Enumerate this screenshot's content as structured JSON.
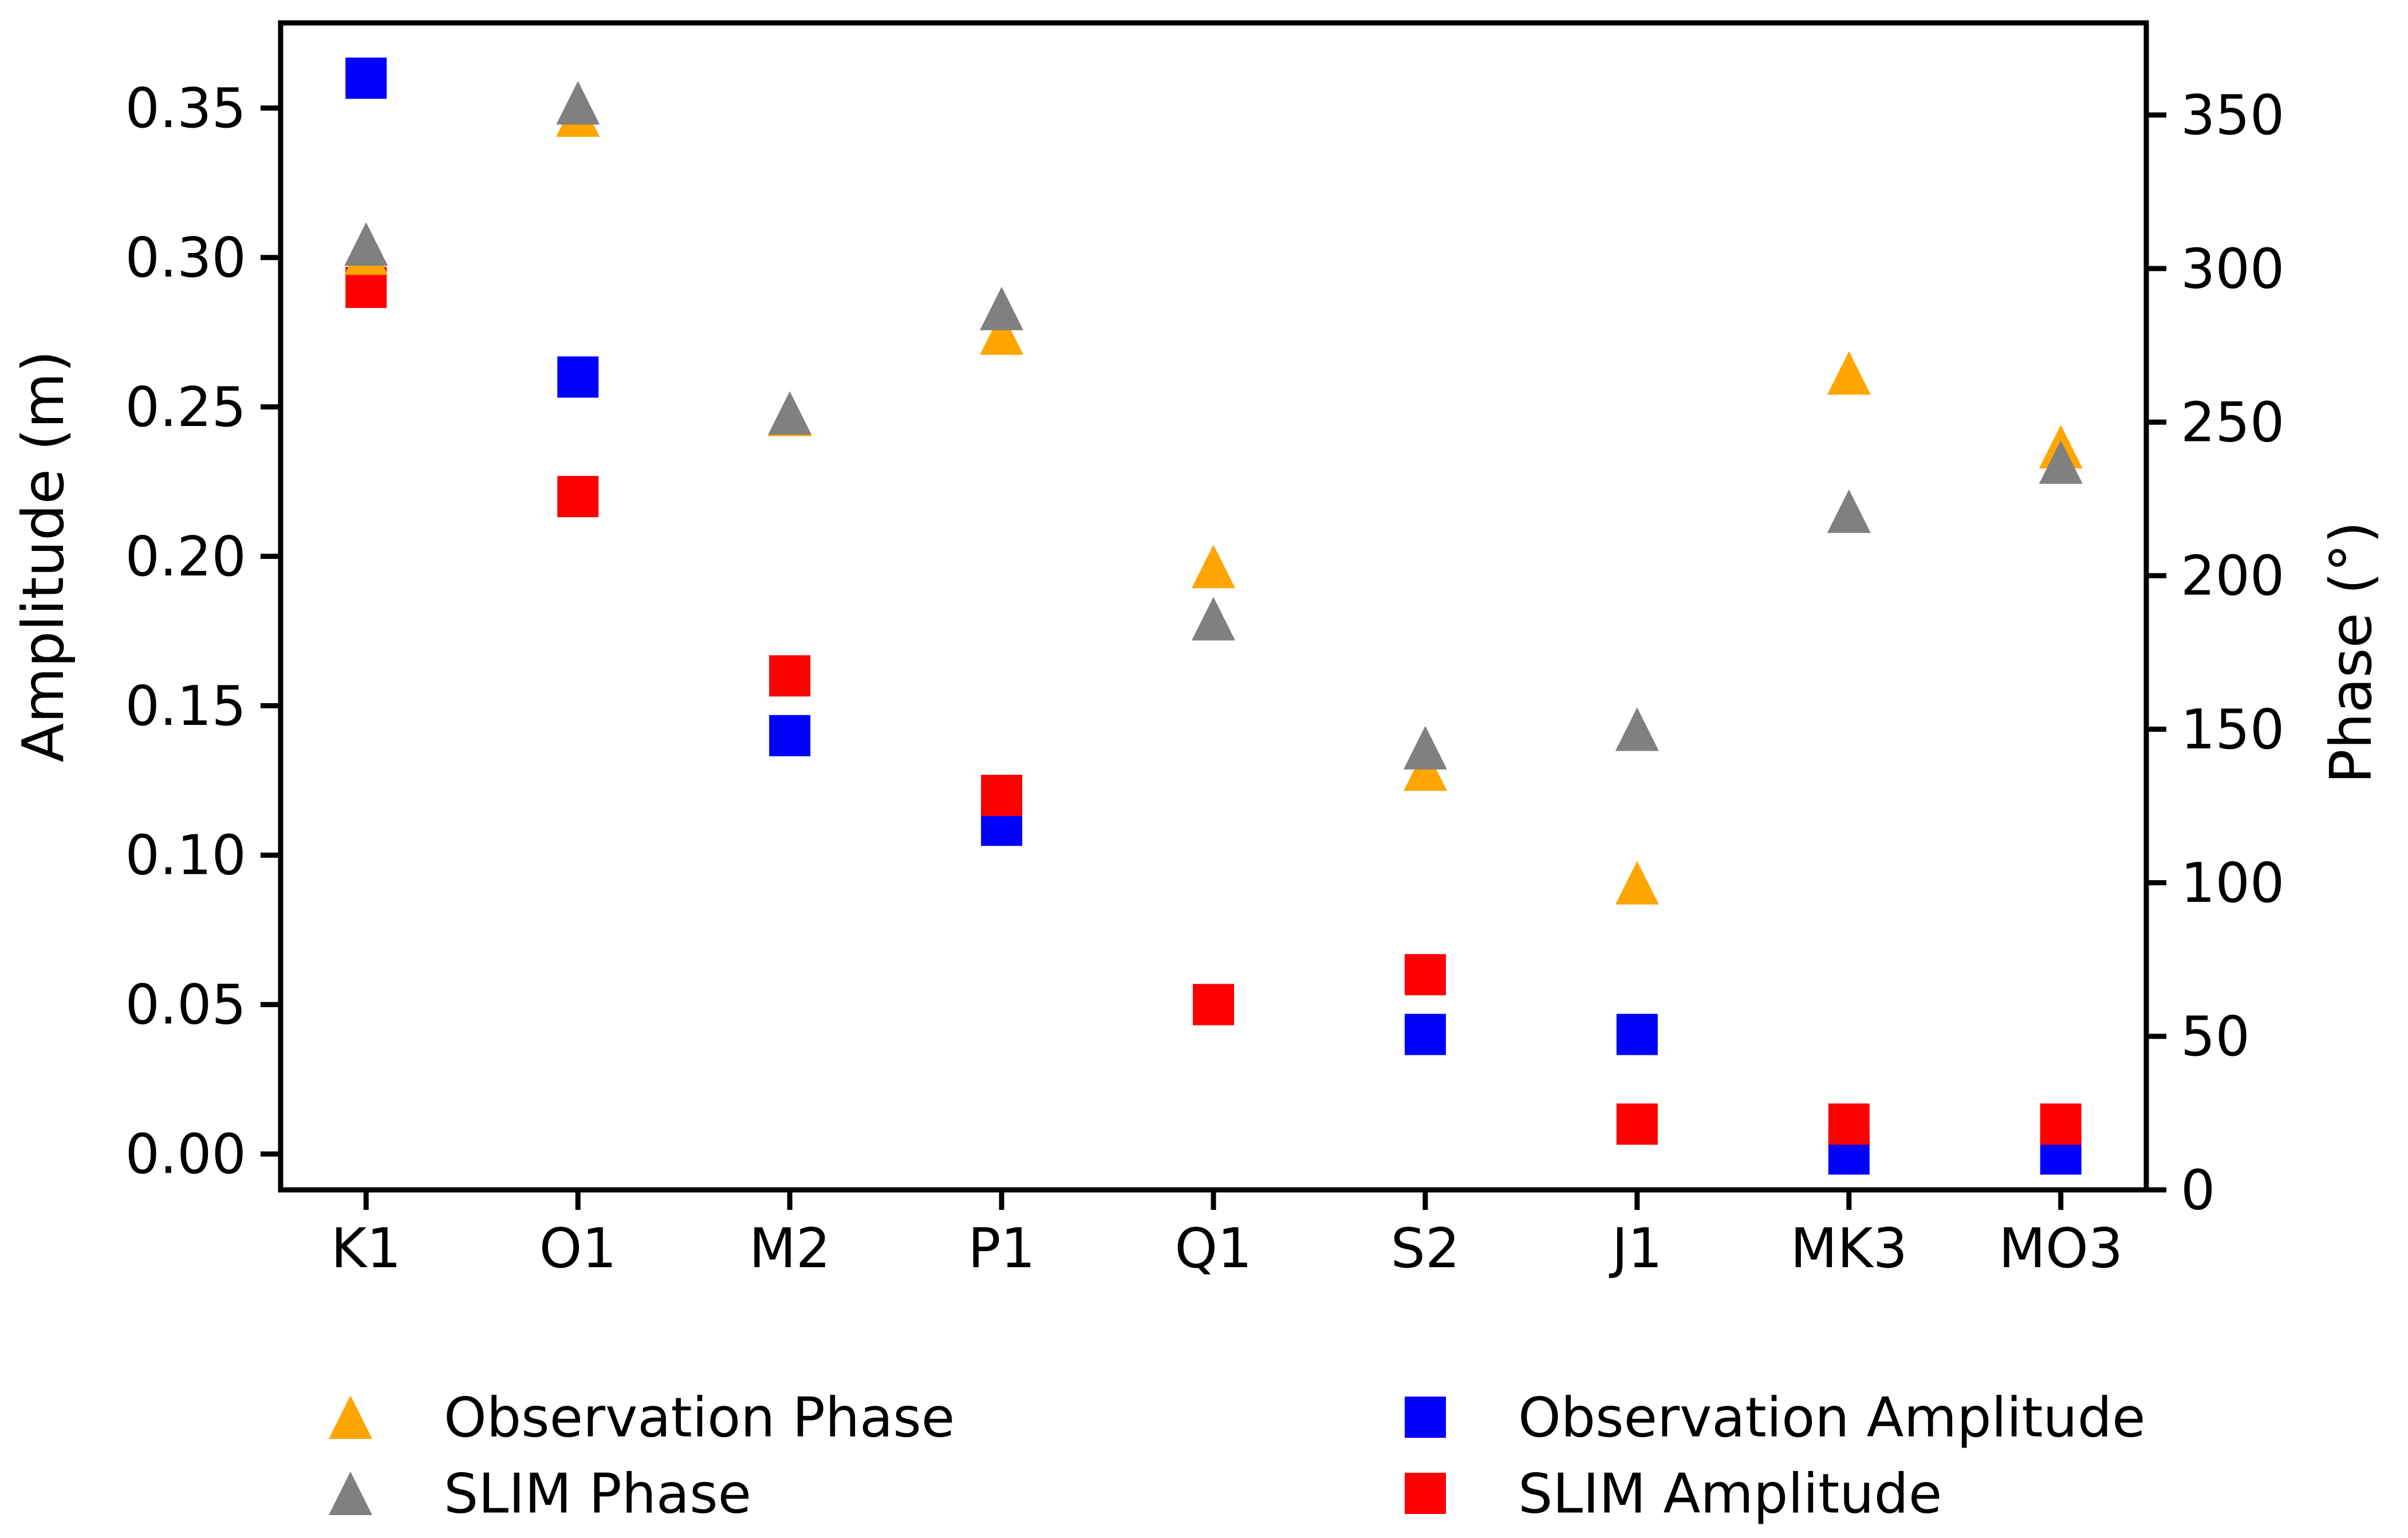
{
  "chart_data": {
    "type": "scatter",
    "categories": [
      "K1",
      "O1",
      "M2",
      "P1",
      "Q1",
      "S2",
      "J1",
      "MK3",
      "MO3"
    ],
    "series": [
      {
        "name": "Observation Amplitude",
        "axis": "left",
        "marker": "square",
        "color": "#0000ff",
        "values": [
          0.36,
          0.26,
          0.14,
          0.11,
          0.05,
          0.04,
          0.04,
          0.0,
          0.0
        ]
      },
      {
        "name": "SLIM Amplitude",
        "axis": "left",
        "marker": "square",
        "color": "#ff0000",
        "values": [
          0.29,
          0.22,
          0.16,
          0.12,
          0.05,
          0.06,
          0.01,
          0.01,
          0.01
        ]
      },
      {
        "name": "Observation Phase",
        "axis": "right",
        "marker": "triangle",
        "color": "#ffa500",
        "values": [
          305,
          350,
          252.5,
          279,
          203,
          137,
          100,
          266,
          242
        ]
      },
      {
        "name": "SLIM Phase",
        "axis": "right",
        "marker": "triangle",
        "color": "#808080",
        "values": [
          308,
          354,
          253,
          287,
          186,
          144,
          150,
          221,
          237
        ]
      }
    ],
    "axes": {
      "left": {
        "label": "Amplitude (m)",
        "tick_labels": [
          "0.00",
          "0.05",
          "0.10",
          "0.15",
          "0.20",
          "0.25",
          "0.30",
          "0.35"
        ],
        "tick_values": [
          0.0,
          0.05,
          0.1,
          0.15,
          0.2,
          0.25,
          0.3,
          0.35
        ],
        "range": [
          -0.012,
          0.3785
        ],
        "grid": false
      },
      "right": {
        "label": "Phase (°)",
        "tick_labels": [
          "0",
          "50",
          "100",
          "150",
          "200",
          "250",
          "300",
          "350"
        ],
        "tick_values": [
          0,
          50,
          100,
          150,
          200,
          250,
          300,
          350
        ],
        "range": [
          0,
          380
        ],
        "grid": false
      }
    },
    "legend": {
      "position": "below",
      "entries": [
        {
          "label": "Observation Phase",
          "marker": "triangle",
          "color": "#ffa500",
          "col": 0,
          "row": 0
        },
        {
          "label": "SLIM Phase",
          "marker": "triangle",
          "color": "#808080",
          "col": 0,
          "row": 1
        },
        {
          "label": "Observation Amplitude",
          "marker": "square",
          "color": "#0000ff",
          "col": 1,
          "row": 0
        },
        {
          "label": "SLIM Amplitude",
          "marker": "square",
          "color": "#ff0000",
          "col": 1,
          "row": 1
        }
      ]
    },
    "colors": {
      "spine": "#000000",
      "text": "#000000",
      "background": "#ffffff"
    }
  }
}
